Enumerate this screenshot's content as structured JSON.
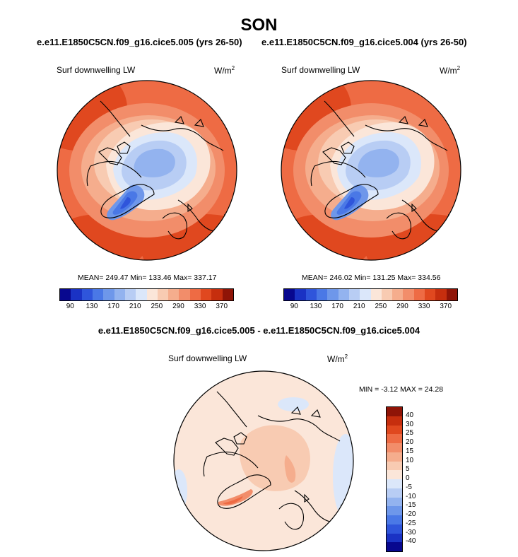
{
  "season": "SON",
  "left_case_title": "e.e11.E1850C5CN.f09_g16.cice5.005 (yrs 26-50)",
  "right_case_title": "e.e11.E1850C5CN.f09_g16.cice5.004 (yrs 26-50)",
  "diff_title": "e.e11.E1850C5CN.f09_g16.cice5.005 - e.e11.E1850C5CN.f09_g16.cice5.004",
  "variable": "Surf downwelling LW",
  "units_base": "W/m",
  "units_sup": "2",
  "chart_data": [
    {
      "type": "heatmap",
      "projection": "north polar stereographic",
      "title": "Surf downwelling LW",
      "units": "W/m2",
      "case": "e.e11.E1850C5CN.f09_g16.cice5.005 (yrs 26-50)",
      "stats_text": "MEAN= 249.47  Min= 133.46  Max= 337.17",
      "mean": 249.47,
      "min": 133.46,
      "max": 337.17,
      "colorbar_levels": [
        90,
        110,
        130,
        150,
        170,
        190,
        210,
        230,
        250,
        270,
        290,
        310,
        330,
        350,
        370
      ],
      "colorbar_labels": [
        "90",
        "130",
        "170",
        "210",
        "250",
        "290",
        "330",
        "370"
      ],
      "colorbar_colors": [
        "#08088f",
        "#1a32c4",
        "#2f55db",
        "#4a78e6",
        "#6e97ea",
        "#93b3ef",
        "#b8cdf4",
        "#dbe7fa",
        "#fbe6d9",
        "#f8cbb2",
        "#f5ad8d",
        "#f28d6a",
        "#ee6b44",
        "#e0481f",
        "#c62e0e",
        "#8f1407"
      ]
    },
    {
      "type": "heatmap",
      "projection": "north polar stereographic",
      "title": "Surf downwelling LW",
      "units": "W/m2",
      "case": "e.e11.E1850C5CN.f09_g16.cice5.004 (yrs 26-50)",
      "stats_text": "MEAN= 246.02  Min= 131.25  Max= 334.56",
      "mean": 246.02,
      "min": 131.25,
      "max": 334.56,
      "colorbar_levels": [
        90,
        110,
        130,
        150,
        170,
        190,
        210,
        230,
        250,
        270,
        290,
        310,
        330,
        350,
        370
      ],
      "colorbar_labels": [
        "90",
        "130",
        "170",
        "210",
        "250",
        "290",
        "330",
        "370"
      ],
      "colorbar_colors": [
        "#08088f",
        "#1a32c4",
        "#2f55db",
        "#4a78e6",
        "#6e97ea",
        "#93b3ef",
        "#b8cdf4",
        "#dbe7fa",
        "#fbe6d9",
        "#f8cbb2",
        "#f5ad8d",
        "#f28d6a",
        "#ee6b44",
        "#e0481f",
        "#c62e0e",
        "#8f1407"
      ]
    },
    {
      "type": "heatmap",
      "projection": "north polar stereographic",
      "title": "Surf downwelling LW",
      "units": "W/m2",
      "case": "e.e11.E1850C5CN.f09_g16.cice5.005 - e.e11.E1850C5CN.f09_g16.cice5.004",
      "stats_text": "MIN =  -3.12 MAX =  24.28",
      "min": -3.12,
      "max": 24.28,
      "colorbar_levels": [
        -40,
        -30,
        -25,
        -20,
        -15,
        -10,
        -5,
        0,
        5,
        10,
        15,
        20,
        25,
        30,
        40
      ],
      "colorbar_labels": [
        "40",
        "30",
        "25",
        "20",
        "15",
        "10",
        "5",
        "0",
        "-5",
        "-10",
        "-15",
        "-20",
        "-25",
        "-30",
        "-40"
      ],
      "colorbar_colors_top_to_bottom": [
        "#8f1407",
        "#c62e0e",
        "#e0481f",
        "#ee6b44",
        "#f28d6a",
        "#f5ad8d",
        "#f8cbb2",
        "#fbe6d9",
        "#dbe7fa",
        "#b8cdf4",
        "#93b3ef",
        "#6e97ea",
        "#4a78e6",
        "#2f55db",
        "#1a32c4",
        "#08088f"
      ]
    }
  ]
}
